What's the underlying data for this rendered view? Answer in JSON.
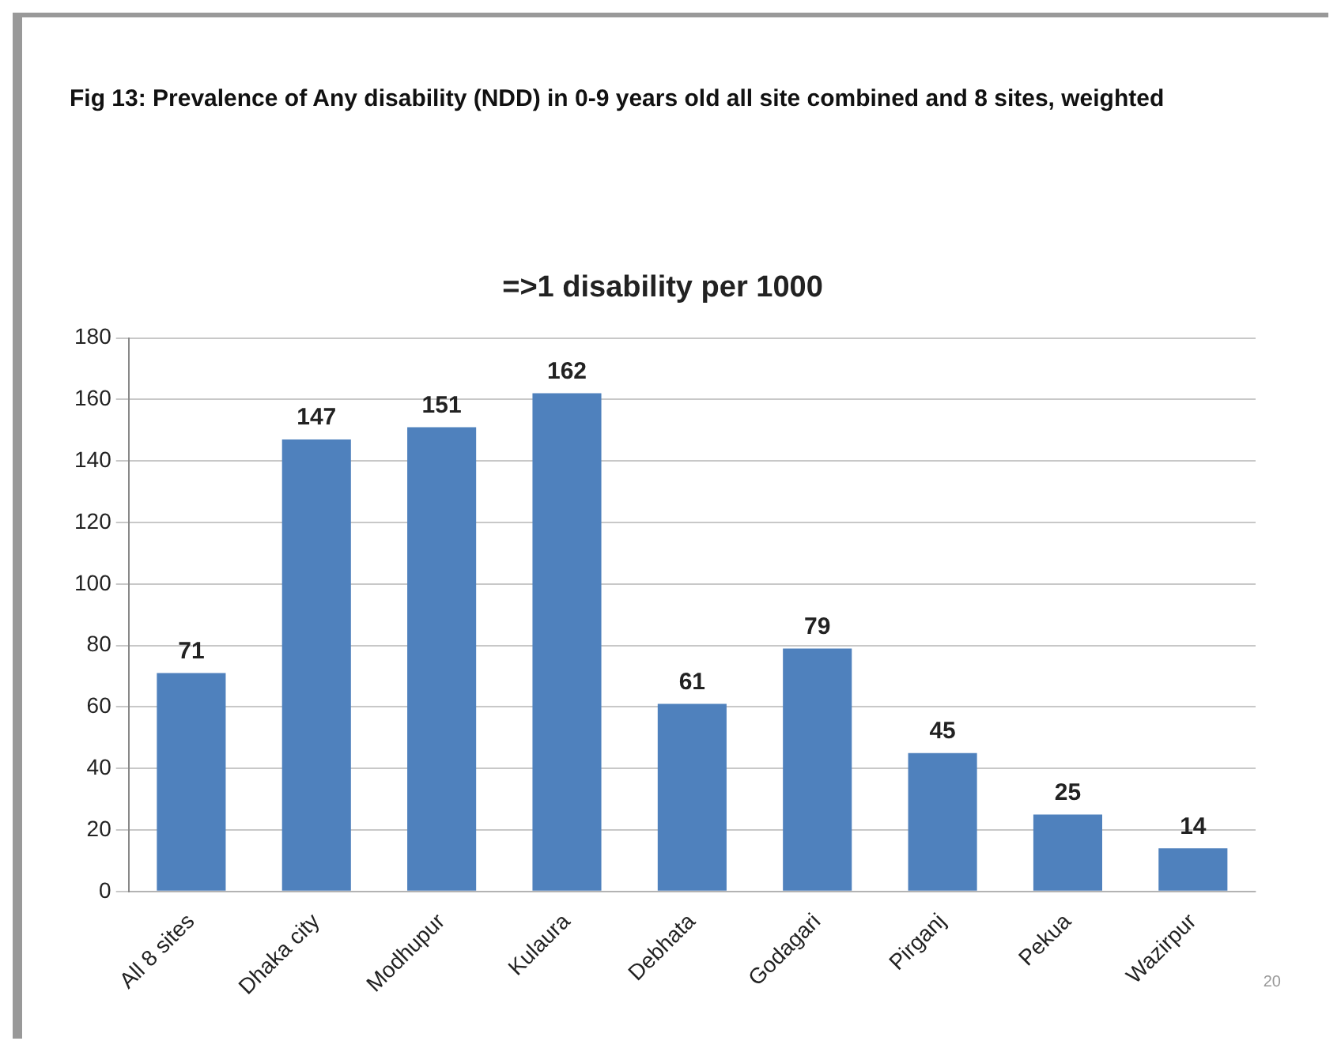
{
  "chart_data": {
    "type": "bar",
    "title": "Fig 13: Prevalence of Any disability (NDD) in 0-9 years old all site combined and 8 sites, weighted",
    "subtitle": "=>1 disability per 1000",
    "categories": [
      "All 8 sites",
      "Dhaka city",
      "Modhupur",
      "Kulaura",
      "Debhata",
      "Godagari",
      "Pirganj",
      "Pekua",
      "Wazirpur"
    ],
    "values": [
      71,
      147,
      151,
      162,
      61,
      79,
      45,
      25,
      14
    ],
    "color": "#4f81bd",
    "ylim": [
      0,
      180
    ],
    "yticks": [
      0,
      20,
      40,
      60,
      80,
      100,
      120,
      140,
      160,
      180
    ],
    "grid": "y",
    "legend": false,
    "data_labels": true,
    "annotations": [
      "20"
    ]
  }
}
